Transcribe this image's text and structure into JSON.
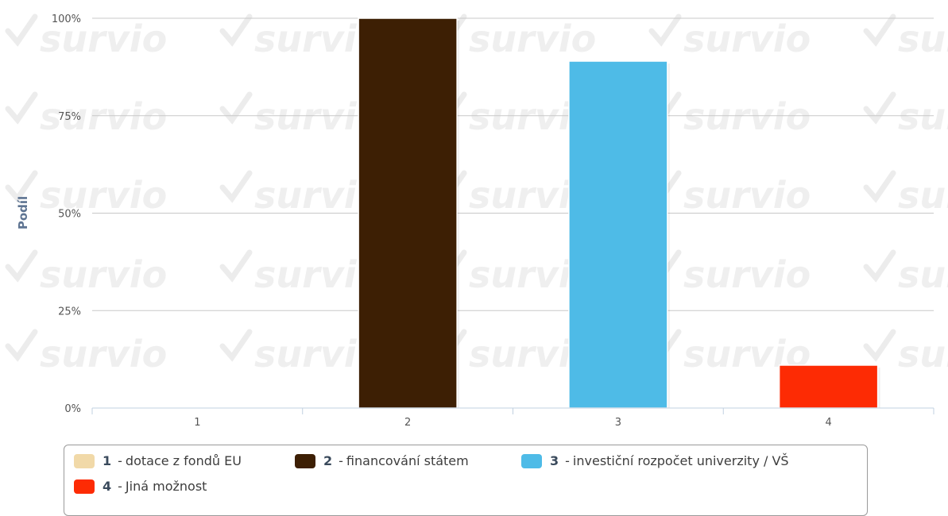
{
  "watermark": {
    "text": "survio"
  },
  "chart_data": {
    "type": "bar",
    "ylabel": "Podíl",
    "ylim": [
      0,
      100
    ],
    "yticks": [
      "0%",
      "25%",
      "50%",
      "75%",
      "100%"
    ],
    "categories": [
      "1",
      "2",
      "3",
      "4"
    ],
    "values": [
      0,
      100,
      89,
      11
    ],
    "colors": [
      "#f1d9a8",
      "#3d1f04",
      "#4ebbe7",
      "#fd2b04"
    ],
    "grid": true,
    "legend_position": "bottom"
  },
  "legend": {
    "items": [
      {
        "num": "1",
        "sep": "-",
        "label": "dotace z fondů EU",
        "color": "#f1d9a8"
      },
      {
        "num": "2",
        "sep": "-",
        "label": "financování státem",
        "color": "#3d1f04"
      },
      {
        "num": "3",
        "sep": "-",
        "label": "investiční rozpočet univerzity / VŠ",
        "color": "#4ebbe7"
      },
      {
        "num": "4",
        "sep": "-",
        "label": "Jiná možnost",
        "color": "#fd2b04"
      }
    ]
  }
}
